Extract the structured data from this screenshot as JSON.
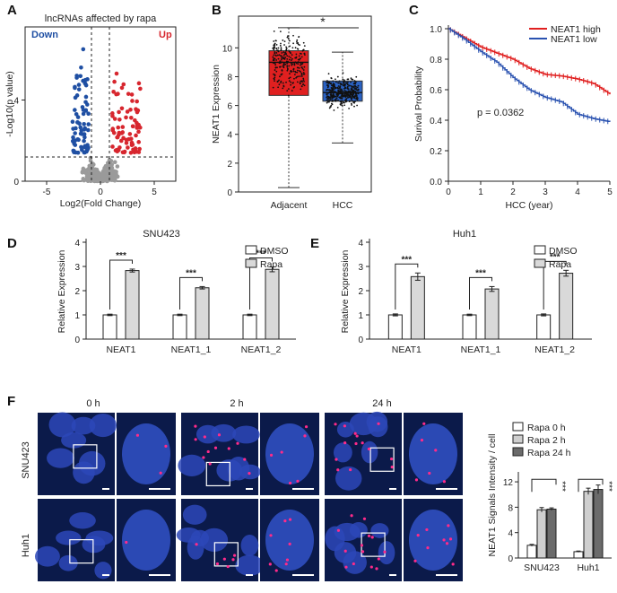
{
  "panelA": {
    "letter": "A",
    "title": "lncRNAs affected by rapa",
    "down_label": "Down",
    "up_label": "Up",
    "xlabel": "Log2(Fold Change)",
    "ylabel": "-Log10(p value)",
    "colors": {
      "down": "#1f4fa3",
      "up": "#d7262e",
      "ns": "#9a9a9a"
    }
  },
  "panelB": {
    "letter": "B",
    "ylabel": "NEAT1 Expression",
    "sig": "*",
    "colors": {
      "adjacent": "#e02020",
      "hcc": "#2a62c4"
    }
  },
  "panelC": {
    "letter": "C",
    "ylabel": "Surival Probability",
    "xlabel": "HCC (year)",
    "pvalue": "p = 0.0362",
    "colors": {
      "high": "#e02020",
      "low": "#2a52b0"
    }
  },
  "panelD": {
    "letter": "D",
    "title": "SNU423",
    "ylabel": "Relative Expression"
  },
  "panelE": {
    "letter": "E",
    "title": "Huh1",
    "ylabel": "Relative Expression"
  },
  "panelF": {
    "letter": "F",
    "timepoints": [
      "0 h",
      "2 h",
      "24 h"
    ],
    "rows": [
      "SNU423",
      "Huh1"
    ],
    "ylabel": "NEAT1 Signals Intensity / cell"
  },
  "chart_data": [
    {
      "type": "scatter",
      "panel": "A",
      "title": "lncRNAs affected by rapa",
      "xlabel": "Log2(Fold Change)",
      "ylabel": "-Log10(p value)",
      "xlim": [
        -7,
        7
      ],
      "ylim": [
        0,
        7.6
      ],
      "xticks": [
        -5,
        0,
        5
      ],
      "yticks": [
        0,
        4
      ],
      "thresholds": {
        "x": [
          -1,
          1
        ],
        "y": 1.3
      }
    },
    {
      "type": "box",
      "panel": "B",
      "ylabel": "NEAT1 Expression",
      "categories": [
        "Adjacent",
        "HCC"
      ],
      "ylim": [
        0,
        12.2
      ],
      "yticks": [
        0,
        2,
        4,
        6,
        8,
        10
      ],
      "boxes": [
        {
          "name": "Adjacent",
          "whisker_low": 0.3,
          "q1": 6.7,
          "median": 9.0,
          "q3": 9.8,
          "whisker_high": 11.4
        },
        {
          "name": "HCC",
          "whisker_low": 3.4,
          "q1": 6.3,
          "median": 6.9,
          "q3": 7.7,
          "whisker_high": 9.7
        }
      ],
      "significance": "*"
    },
    {
      "type": "line",
      "panel": "C",
      "xlabel": "HCC (year)",
      "ylabel": "Surival Probability",
      "xlim": [
        0,
        5
      ],
      "ylim": [
        0,
        1.0
      ],
      "xticks": [
        0,
        1,
        2,
        3,
        4,
        5
      ],
      "yticks": [
        0,
        0.2,
        0.4,
        0.6,
        0.8,
        1.0
      ],
      "x": [
        0,
        0.5,
        1,
        1.5,
        2,
        2.5,
        3,
        3.5,
        4,
        4.5,
        5
      ],
      "series": [
        {
          "name": "NEAT1 high",
          "values": [
            1.0,
            0.94,
            0.88,
            0.84,
            0.8,
            0.74,
            0.7,
            0.69,
            0.67,
            0.64,
            0.57
          ]
        },
        {
          "name": "NEAT1 low",
          "values": [
            1.0,
            0.93,
            0.85,
            0.78,
            0.68,
            0.6,
            0.55,
            0.52,
            0.44,
            0.41,
            0.39
          ]
        }
      ],
      "annotation": "p = 0.0362",
      "legend": "top-right"
    },
    {
      "type": "bar",
      "panel": "D",
      "title": "SNU423",
      "ylabel": "Relative Expression",
      "categories": [
        "NEAT1",
        "NEAT1_1",
        "NEAT1_2"
      ],
      "ylim": [
        0,
        4
      ],
      "yticks": [
        0,
        1,
        2,
        3,
        4
      ],
      "series": [
        {
          "name": "DMSO",
          "values": [
            1.0,
            1.0,
            1.0
          ],
          "errors": [
            0.03,
            0.03,
            0.03
          ]
        },
        {
          "name": "Rapa",
          "values": [
            2.83,
            2.12,
            2.88
          ],
          "errors": [
            0.06,
            0.05,
            0.1
          ]
        }
      ],
      "significance": [
        "***",
        "***",
        "***"
      ],
      "legend": "top-right"
    },
    {
      "type": "bar",
      "panel": "E",
      "title": "Huh1",
      "ylabel": "Relative Expression",
      "categories": [
        "NEAT1",
        "NEAT1_1",
        "NEAT1_2"
      ],
      "ylim": [
        0,
        4
      ],
      "yticks": [
        0,
        1,
        2,
        3,
        4
      ],
      "series": [
        {
          "name": "DMSO",
          "values": [
            1.0,
            1.0,
            1.0
          ],
          "errors": [
            0.04,
            0.03,
            0.04
          ]
        },
        {
          "name": "Rapa",
          "values": [
            2.58,
            2.07,
            2.72
          ],
          "errors": [
            0.15,
            0.1,
            0.12
          ]
        }
      ],
      "significance": [
        "***",
        "***",
        "***"
      ],
      "legend": "top-right"
    },
    {
      "type": "bar",
      "panel": "F",
      "ylabel": "NEAT1 Signals Intensity / cell",
      "categories": [
        "SNU423",
        "Huh1"
      ],
      "ylim": [
        0,
        13
      ],
      "yticks": [
        0,
        4,
        8,
        12
      ],
      "series": [
        {
          "name": "Rapa  0 h",
          "values": [
            2.0,
            1.0
          ],
          "errors": [
            0.15,
            0.1
          ]
        },
        {
          "name": "Rapa  2 h",
          "values": [
            7.6,
            10.5
          ],
          "errors": [
            0.35,
            0.5
          ]
        },
        {
          "name": "Rapa 24 h",
          "values": [
            7.7,
            10.8
          ],
          "errors": [
            0.2,
            0.7
          ]
        }
      ],
      "significance": "***",
      "legend": "top"
    }
  ]
}
